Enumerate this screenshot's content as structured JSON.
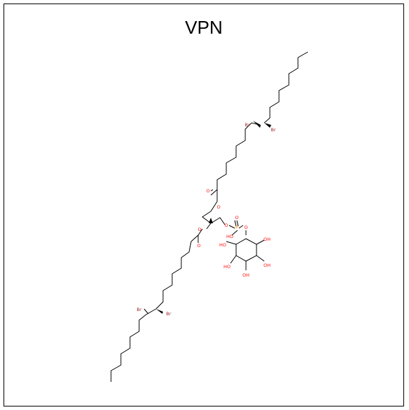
{
  "title": "VPN",
  "labels": {
    "br": "Br",
    "o": "O",
    "p": "P",
    "ho": "HO",
    "oh": "OH"
  },
  "colors": {
    "bond": "#000000",
    "oxygen": "#ff0d0d",
    "bromine": "#a62929",
    "phosphorus": "#ff8000",
    "frame": "#000000"
  }
}
